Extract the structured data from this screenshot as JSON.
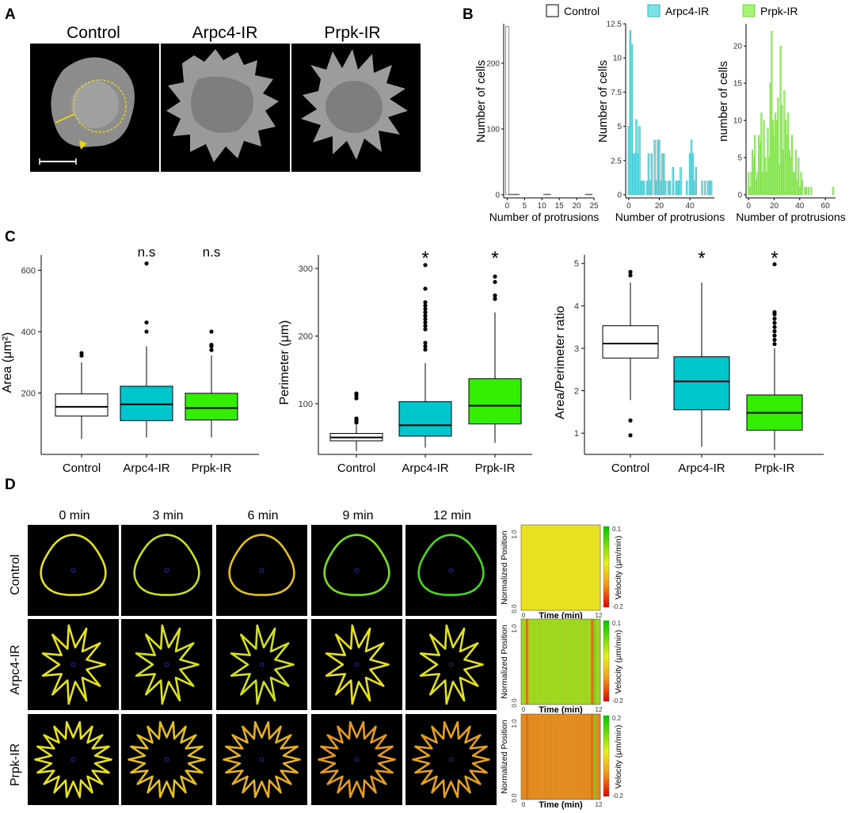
{
  "panel_labels": [
    "A",
    "B",
    "C",
    "D"
  ],
  "panel_a": {
    "titles": [
      "Control",
      "Arpc4-IR",
      "Prpk-IR"
    ]
  },
  "panel_b": {
    "legend": [
      {
        "label": "Control",
        "color": "#ffffff",
        "stroke": "#000000"
      },
      {
        "label": "Arpc4-IR",
        "color": "#7fe0e6",
        "stroke": "#29b8c2"
      },
      {
        "label": "Prpk-IR",
        "color": "#a8f27a",
        "stroke": "#6fd93a"
      }
    ]
  },
  "panel_c": {
    "categories": [
      "Control",
      "Arpc4-IR",
      "Prpk-IR"
    ],
    "colors": [
      "#ffffff",
      "#00c5cd",
      "#33ee00"
    ]
  },
  "panel_d": {
    "time_labels": [
      "0 min",
      "3 min",
      "6 min",
      "9 min",
      "12 min"
    ],
    "row_labels": [
      "Control",
      "Arpc4-IR",
      "Prpk-IR"
    ],
    "kymo_ylabel": "Normalized Position",
    "kymo_xlabel": "Time (min)",
    "kymo_cbar_label": "Velocity (μm/min)",
    "kymo_xticks": [
      "0",
      "12"
    ],
    "kymo_yticks": [
      "0.0",
      "1.0"
    ],
    "kymo_cbar_ticks": [
      [
        "0.1",
        "-0.2"
      ],
      [
        "0.1",
        "-0.2"
      ],
      [
        "0.2",
        "-0.2"
      ]
    ]
  },
  "chart_data": [
    {
      "type": "bar",
      "title": "",
      "series": [
        {
          "name": "Control",
          "values": [
            {
              "x": 0,
              "y": 256
            },
            {
              "x": 1,
              "y": 1
            },
            {
              "x": 2,
              "y": 1
            },
            {
              "x": 3,
              "y": 1
            },
            {
              "x": 11,
              "y": 1
            },
            {
              "x": 12,
              "y": 1
            },
            {
              "x": 23,
              "y": 1
            },
            {
              "x": 24,
              "y": 1
            }
          ]
        }
      ],
      "xlabel": "Number of protrusions",
      "ylabel": "Number of cells",
      "xlim": [
        -1,
        25
      ],
      "ylim": [
        0,
        260
      ],
      "xticks": [
        0,
        5,
        10,
        15,
        20,
        25
      ],
      "yticks": [
        0,
        100,
        200
      ],
      "color": "#ffffff",
      "stroke": "#444444"
    },
    {
      "type": "bar",
      "title": "",
      "series": [
        {
          "name": "Arpc4-IR",
          "values": [
            {
              "x": 0,
              "y": 5
            },
            {
              "x": 1,
              "y": 12
            },
            {
              "x": 2,
              "y": 11
            },
            {
              "x": 3,
              "y": 3
            },
            {
              "x": 4,
              "y": 3
            },
            {
              "x": 5,
              "y": 5.5
            },
            {
              "x": 6,
              "y": 3
            },
            {
              "x": 7,
              "y": 5
            },
            {
              "x": 8,
              "y": 1
            },
            {
              "x": 9,
              "y": 1
            },
            {
              "x": 10,
              "y": 1
            },
            {
              "x": 12,
              "y": 1
            },
            {
              "x": 13,
              "y": 3
            },
            {
              "x": 14,
              "y": 1
            },
            {
              "x": 15,
              "y": 3
            },
            {
              "x": 17,
              "y": 4
            },
            {
              "x": 18,
              "y": 1
            },
            {
              "x": 19,
              "y": 4
            },
            {
              "x": 20,
              "y": 4
            },
            {
              "x": 21,
              "y": 1
            },
            {
              "x": 22,
              "y": 3
            },
            {
              "x": 23,
              "y": 3
            },
            {
              "x": 24,
              "y": 1
            },
            {
              "x": 26,
              "y": 1
            },
            {
              "x": 27,
              "y": 1
            },
            {
              "x": 29,
              "y": 2
            },
            {
              "x": 31,
              "y": 1
            },
            {
              "x": 32,
              "y": 1
            },
            {
              "x": 33,
              "y": 1
            },
            {
              "x": 34,
              "y": 2
            },
            {
              "x": 38,
              "y": 1
            },
            {
              "x": 40,
              "y": 3
            },
            {
              "x": 41,
              "y": 4
            },
            {
              "x": 42,
              "y": 3
            },
            {
              "x": 43,
              "y": 1
            },
            {
              "x": 44,
              "y": 2
            },
            {
              "x": 48,
              "y": 1
            },
            {
              "x": 50,
              "y": 1
            },
            {
              "x": 52,
              "y": 1
            },
            {
              "x": 53,
              "y": 1
            },
            {
              "x": 54,
              "y": 1
            }
          ]
        }
      ],
      "xlabel": "Number of protrusions",
      "ylabel": "Number of cells",
      "xlim": [
        -2,
        56
      ],
      "ylim": [
        0,
        12.5
      ],
      "xticks": [
        0,
        20,
        40
      ],
      "yticks": [
        0,
        2.5,
        5.0,
        7.5,
        10.0,
        12.5
      ],
      "color": "#7fe0e6",
      "stroke": "#29b8c2"
    },
    {
      "type": "bar",
      "title": "",
      "series": [
        {
          "name": "Prpk-IR",
          "values": [
            {
              "x": 0,
              "y": 3
            },
            {
              "x": 1,
              "y": 1
            },
            {
              "x": 2,
              "y": 3
            },
            {
              "x": 3,
              "y": 6
            },
            {
              "x": 4,
              "y": 5
            },
            {
              "x": 5,
              "y": 8
            },
            {
              "x": 6,
              "y": 2
            },
            {
              "x": 7,
              "y": 3
            },
            {
              "x": 8,
              "y": 8
            },
            {
              "x": 9,
              "y": 7
            },
            {
              "x": 10,
              "y": 11
            },
            {
              "x": 11,
              "y": 3
            },
            {
              "x": 12,
              "y": 10
            },
            {
              "x": 13,
              "y": 5
            },
            {
              "x": 14,
              "y": 3
            },
            {
              "x": 15,
              "y": 9
            },
            {
              "x": 16,
              "y": 5
            },
            {
              "x": 17,
              "y": 15
            },
            {
              "x": 18,
              "y": 22
            },
            {
              "x": 19,
              "y": 10
            },
            {
              "x": 20,
              "y": 8
            },
            {
              "x": 21,
              "y": 11
            },
            {
              "x": 22,
              "y": 10
            },
            {
              "x": 23,
              "y": 13
            },
            {
              "x": 24,
              "y": 4
            },
            {
              "x": 25,
              "y": 20
            },
            {
              "x": 26,
              "y": 12
            },
            {
              "x": 27,
              "y": 6
            },
            {
              "x": 28,
              "y": 14
            },
            {
              "x": 29,
              "y": 10
            },
            {
              "x": 30,
              "y": 8
            },
            {
              "x": 31,
              "y": 11
            },
            {
              "x": 32,
              "y": 6
            },
            {
              "x": 33,
              "y": 5
            },
            {
              "x": 34,
              "y": 8
            },
            {
              "x": 35,
              "y": 3
            },
            {
              "x": 36,
              "y": 3
            },
            {
              "x": 37,
              "y": 6
            },
            {
              "x": 38,
              "y": 2
            },
            {
              "x": 39,
              "y": 5
            },
            {
              "x": 40,
              "y": 1
            },
            {
              "x": 41,
              "y": 3
            },
            {
              "x": 42,
              "y": 2
            },
            {
              "x": 44,
              "y": 1
            },
            {
              "x": 45,
              "y": 1
            },
            {
              "x": 47,
              "y": 1
            },
            {
              "x": 49,
              "y": 1
            },
            {
              "x": 66,
              "y": 1
            }
          ]
        }
      ],
      "xlabel": "Number of protrusions",
      "ylabel": "number of cells",
      "xlim": [
        -2,
        68
      ],
      "ylim": [
        0,
        23
      ],
      "xticks": [
        0,
        20,
        40,
        60
      ],
      "yticks": [
        0,
        5,
        10,
        15,
        20
      ],
      "color": "#a8f27a",
      "stroke": "#6fd93a"
    },
    {
      "type": "box",
      "title": "",
      "categories": [
        "Control",
        "Arpc4-IR",
        "Prpk-IR"
      ],
      "ylabel": "Area (μm²)",
      "xlabel": "",
      "ylim": [
        0,
        650
      ],
      "yticks": [
        200,
        400,
        600
      ],
      "significance": [
        "",
        "n.s",
        "n.s"
      ],
      "boxes": [
        {
          "min": 50,
          "q1": 125,
          "median": 155,
          "q3": 197,
          "max": 300,
          "outliers": [
            322,
            330
          ]
        },
        {
          "min": 55,
          "q1": 110,
          "median": 163,
          "q3": 222,
          "max": 352,
          "outliers": [
            400,
            430,
            622
          ]
        },
        {
          "min": 55,
          "q1": 112,
          "median": 151,
          "q3": 199,
          "max": 323,
          "outliers": [
            340,
            352,
            357,
            400
          ]
        }
      ]
    },
    {
      "type": "box",
      "title": "",
      "categories": [
        "Control",
        "Arpc4-IR",
        "Prpk-IR"
      ],
      "ylabel": "Perimeter (μm)",
      "xlabel": "",
      "ylim": [
        25,
        320
      ],
      "yticks": [
        100,
        200,
        300
      ],
      "significance": [
        "",
        "*",
        "*"
      ],
      "boxes": [
        {
          "min": 30,
          "q1": 45,
          "median": 50,
          "q3": 56,
          "max": 68,
          "outliers": [
            72,
            75,
            78,
            108,
            112,
            115
          ]
        },
        {
          "min": 35,
          "q1": 52,
          "median": 68,
          "q3": 103,
          "max": 160,
          "outliers": [
            180,
            185,
            190,
            210,
            215,
            220,
            225,
            230,
            235,
            240,
            245,
            250,
            270,
            305
          ]
        },
        {
          "min": 42,
          "q1": 70,
          "median": 97,
          "q3": 137,
          "max": 235,
          "outliers": [
            255,
            260,
            280,
            288
          ]
        }
      ]
    },
    {
      "type": "box",
      "title": "",
      "categories": [
        "Control",
        "Arpc4-IR",
        "Prpk-IR"
      ],
      "ylabel": "Area/Perimeter ratio",
      "xlabel": "",
      "ylim": [
        0.5,
        5.2
      ],
      "yticks": [
        1,
        2,
        3,
        4,
        5
      ],
      "significance": [
        "",
        "*",
        "*"
      ],
      "boxes": [
        {
          "min": 1.78,
          "q1": 2.77,
          "median": 3.11,
          "q3": 3.53,
          "max": 4.55,
          "outliers": [
            0.95,
            1.3,
            4.72,
            4.8
          ]
        },
        {
          "min": 0.68,
          "q1": 1.55,
          "median": 2.22,
          "q3": 2.8,
          "max": 4.55,
          "outliers": []
        },
        {
          "min": 0.6,
          "q1": 1.07,
          "median": 1.48,
          "q3": 1.9,
          "max": 3.0,
          "outliers": [
            3.1,
            3.2,
            3.3,
            3.4,
            3.5,
            3.6,
            3.7,
            3.8,
            3.85,
            4.98
          ]
        }
      ]
    }
  ]
}
